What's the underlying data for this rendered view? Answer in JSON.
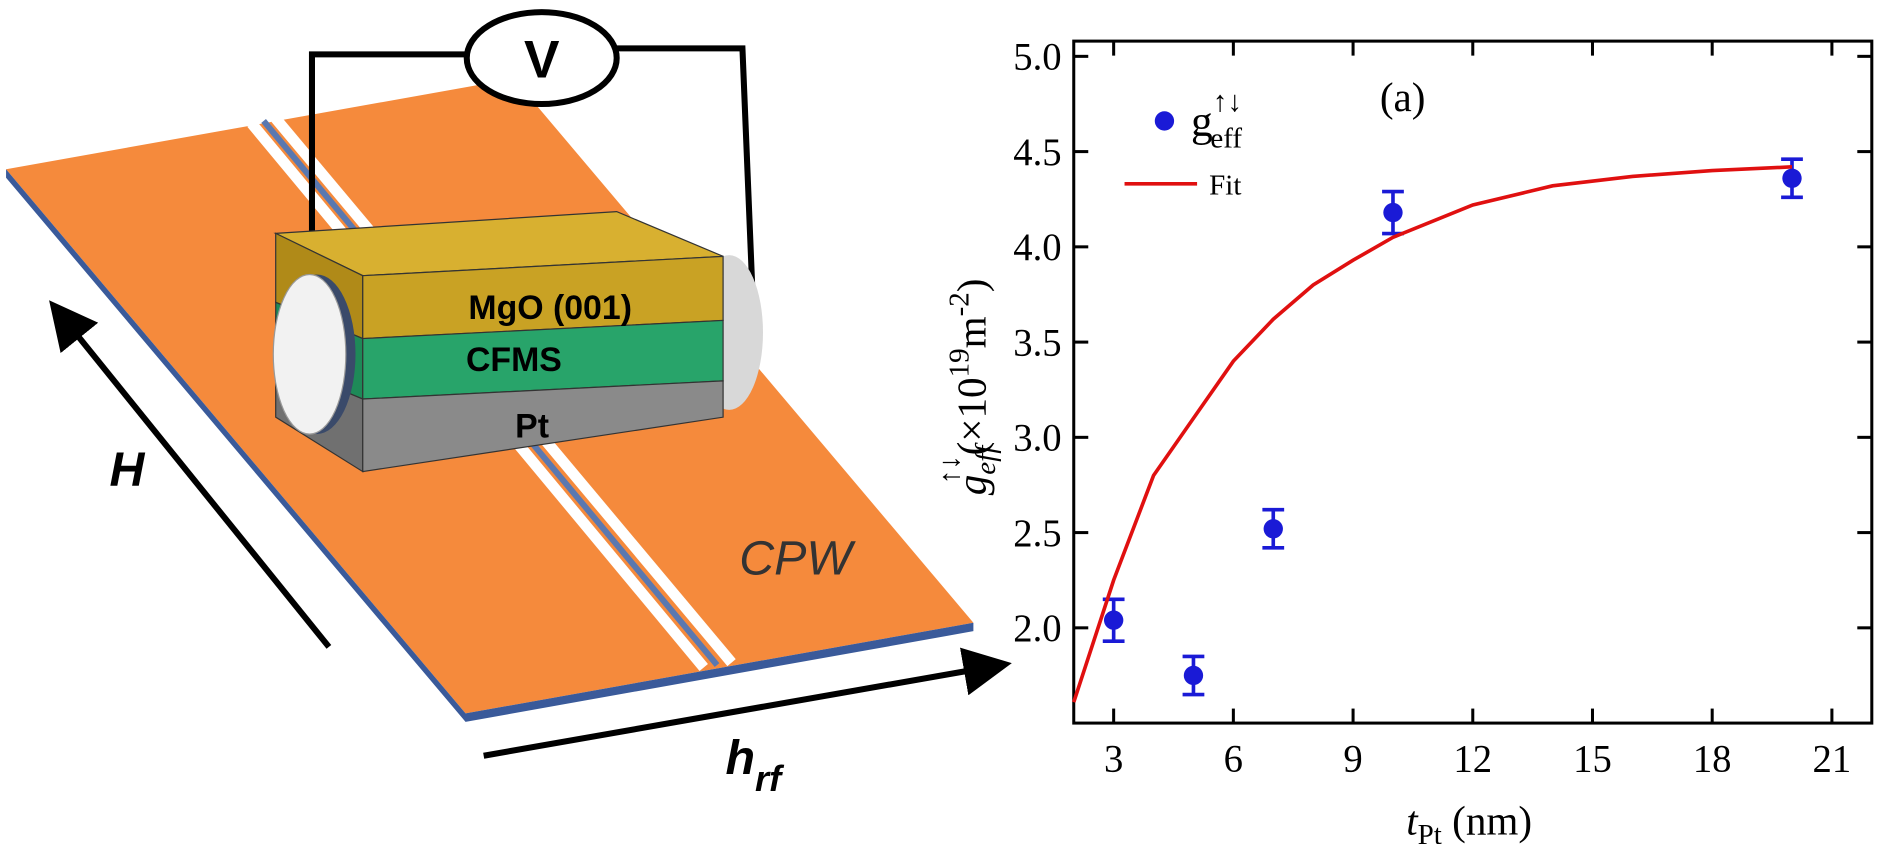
{
  "diagram": {
    "voltmeter": "V",
    "layers": [
      "MgO (001)",
      "CFMS",
      "Pt"
    ],
    "field": "H",
    "rf_field": "h",
    "rf_field_sub": "rf",
    "waveguide": "CPW"
  },
  "chart_data": {
    "type": "scatter",
    "annotation": "(a)",
    "x_label": {
      "main": "t",
      "sub": "Pt",
      "unit": " (nm)"
    },
    "y_label": {
      "main": "g",
      "sub": "eff",
      "sup": "↑↓",
      "unit": "(×10",
      "exp": "19",
      "unit2": "m",
      "exp2": "-2",
      "close": ")"
    },
    "xlim": [
      2,
      22
    ],
    "ylim": [
      1.5,
      5.08
    ],
    "xticks": [
      3,
      6,
      9,
      12,
      15,
      18,
      21
    ],
    "yticks": [
      {
        "value": 2.0,
        "label": "2.0"
      },
      {
        "value": 2.5,
        "label": "2.5"
      },
      {
        "value": 3.0,
        "label": "3.0"
      },
      {
        "value": 3.5,
        "label": "3.5"
      },
      {
        "value": 4.0,
        "label": "4.0"
      },
      {
        "value": 4.5,
        "label": "4.5"
      },
      {
        "value": 5.0,
        "label": "5.0"
      }
    ],
    "series": [
      {
        "name": "g",
        "name_sub": "eff",
        "name_sup": "↑↓",
        "type": "scatter",
        "color": "#1a1ad6",
        "x": [
          3,
          5,
          7,
          10,
          20
        ],
        "values": [
          2.04,
          1.75,
          2.52,
          4.18,
          4.36
        ],
        "errors": [
          0.11,
          0.1,
          0.1,
          0.11,
          0.1
        ]
      },
      {
        "name": "Fit",
        "type": "line",
        "color": "#e01010",
        "x": [
          2,
          3,
          4,
          5,
          6,
          7,
          8,
          9,
          10,
          12,
          14,
          16,
          18,
          20
        ],
        "values": [
          1.61,
          2.25,
          2.8,
          3.1,
          3.4,
          3.62,
          3.8,
          3.93,
          4.05,
          4.22,
          4.32,
          4.37,
          4.4,
          4.42
        ]
      }
    ]
  }
}
